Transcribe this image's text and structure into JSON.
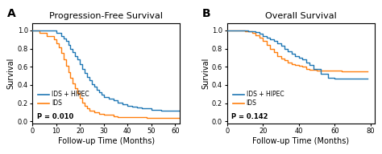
{
  "chart_data": [
    {
      "type": "step",
      "title": "Progression-Free Survival",
      "panel_label": "A",
      "x_label": "Follow-up Time (Months)",
      "y_label": "Survival",
      "xlim": [
        0,
        62
      ],
      "ylim": [
        -0.02,
        1.08
      ],
      "xticks": [
        0,
        10,
        20,
        30,
        40,
        50,
        60
      ],
      "yticks": [
        0.0,
        0.2,
        0.4,
        0.6,
        0.8,
        1.0
      ],
      "annotations": [
        "P = 0.010"
      ],
      "legend": "lower left",
      "series": [
        {
          "name": "IDS + HIPEC",
          "x": [
            0,
            8,
            10,
            12,
            13,
            14,
            15,
            16,
            17,
            18,
            19,
            20,
            21,
            22,
            23,
            24,
            25,
            26,
            27,
            28,
            29,
            30,
            32,
            34,
            36,
            38,
            40,
            42,
            44,
            46,
            48,
            50,
            54,
            60,
            62
          ],
          "values": [
            1.0,
            1.0,
            0.97,
            0.94,
            0.91,
            0.88,
            0.84,
            0.8,
            0.76,
            0.72,
            0.68,
            0.63,
            0.58,
            0.53,
            0.49,
            0.45,
            0.41,
            0.38,
            0.35,
            0.32,
            0.29,
            0.27,
            0.25,
            0.23,
            0.21,
            0.19,
            0.17,
            0.16,
            0.15,
            0.14,
            0.14,
            0.13,
            0.12,
            0.12,
            0.12
          ]
        },
        {
          "name": "IDS",
          "x": [
            0,
            3,
            6,
            9,
            10,
            11,
            12,
            13,
            14,
            15,
            16,
            17,
            18,
            19,
            20,
            21,
            22,
            23,
            24,
            26,
            28,
            30,
            32,
            34,
            36,
            40,
            44,
            48,
            60,
            62
          ],
          "values": [
            1.0,
            0.97,
            0.94,
            0.9,
            0.86,
            0.81,
            0.75,
            0.68,
            0.61,
            0.54,
            0.48,
            0.42,
            0.36,
            0.31,
            0.26,
            0.21,
            0.17,
            0.14,
            0.12,
            0.1,
            0.08,
            0.07,
            0.07,
            0.06,
            0.05,
            0.05,
            0.05,
            0.04,
            0.04,
            0.04
          ]
        }
      ]
    },
    {
      "type": "step",
      "title": "Overall Survival",
      "panel_label": "B",
      "x_label": "Follow-up Time (Months)",
      "y_label": "Survival",
      "xlim": [
        0,
        82
      ],
      "ylim": [
        -0.02,
        1.08
      ],
      "xticks": [
        0,
        20,
        40,
        60,
        80
      ],
      "yticks": [
        0.0,
        0.2,
        0.4,
        0.6,
        0.8,
        1.0
      ],
      "annotations": [
        "P = 0.142"
      ],
      "legend": "lower left",
      "series": [
        {
          "name": "IDS + HIPEC",
          "x": [
            0,
            6,
            12,
            16,
            18,
            20,
            22,
            24,
            26,
            28,
            30,
            32,
            34,
            36,
            38,
            40,
            42,
            44,
            46,
            48,
            52,
            56,
            60,
            66,
            72,
            78
          ],
          "values": [
            1.0,
            1.0,
            0.99,
            0.98,
            0.96,
            0.94,
            0.92,
            0.9,
            0.88,
            0.86,
            0.83,
            0.8,
            0.77,
            0.74,
            0.72,
            0.7,
            0.68,
            0.65,
            0.62,
            0.58,
            0.52,
            0.48,
            0.47,
            0.47,
            0.47,
            0.47
          ]
        },
        {
          "name": "IDS",
          "x": [
            0,
            6,
            10,
            14,
            16,
            18,
            20,
            22,
            24,
            26,
            28,
            30,
            32,
            34,
            36,
            38,
            40,
            42,
            44,
            46,
            50,
            54,
            56,
            60,
            64,
            68,
            72,
            78
          ],
          "values": [
            1.0,
            1.0,
            0.99,
            0.97,
            0.95,
            0.92,
            0.88,
            0.84,
            0.8,
            0.76,
            0.72,
            0.69,
            0.67,
            0.65,
            0.63,
            0.62,
            0.61,
            0.6,
            0.58,
            0.57,
            0.56,
            0.56,
            0.56,
            0.56,
            0.55,
            0.55,
            0.55,
            0.55
          ]
        }
      ]
    }
  ]
}
